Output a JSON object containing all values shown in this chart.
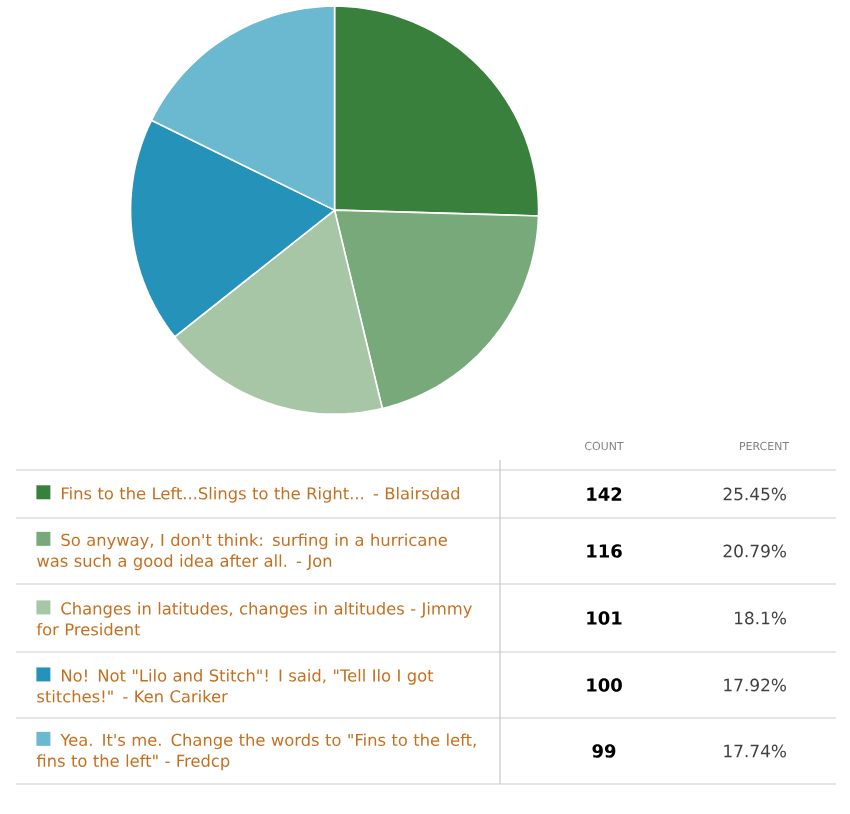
{
  "chart_data": {
    "type": "pie",
    "categories": [
      "Fins to the Left...Slings to the Right... - Blairsdad",
      "So anyway, I don't think: surfing in a hurricane was such a good idea after all. - Jon",
      "Changes in latitudes, changes in altitudes - Jimmy for President",
      "No! Not \"Lilo and Stitch\"! I said, \"Tell Ilo I got stitches!\" - Ken Cariker",
      "Yea. It's me. Change the words to \"Fins to the left, fins to the left\" - Fredcp"
    ],
    "values": [
      25.45,
      20.79,
      18.1,
      17.92,
      17.74
    ],
    "colors": [
      "#38803c",
      "#78a97a",
      "#a6c6a6",
      "#2592b9",
      "#6bb8d1"
    ],
    "value_labels": [
      "25.45%",
      "20.79%",
      "18.1%",
      "17.92%",
      "17.74%"
    ],
    "annotations": [
      "COUNT",
      "PERCENT",
      "142",
      "116",
      "101",
      "100",
      "99"
    ],
    "legend": "bottom"
  }
}
